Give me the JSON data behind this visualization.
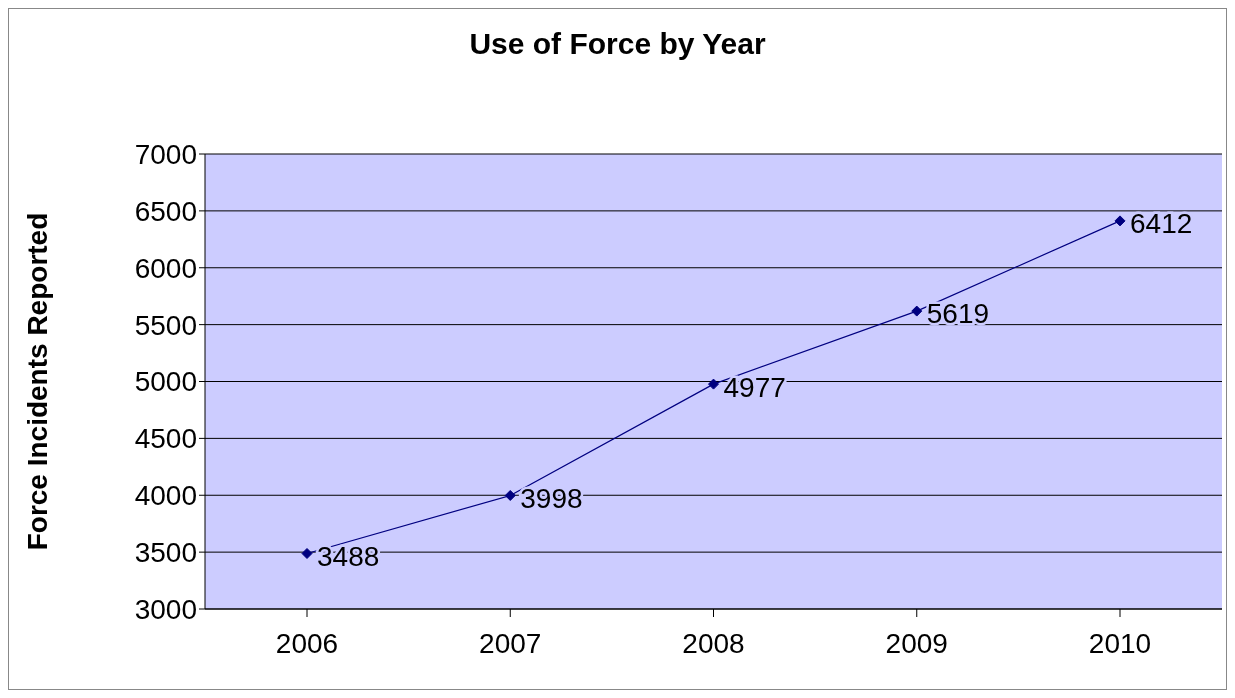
{
  "chart_data": {
    "type": "line",
    "title": "Use of Force by Year",
    "ylabel": "Force Incidents Reported",
    "categories": [
      "2006",
      "2007",
      "2008",
      "2009",
      "2010"
    ],
    "series": [
      {
        "color": "#000080",
        "values": [
          3488,
          3998,
          4977,
          5619,
          6412
        ]
      }
    ],
    "ylim": [
      3000,
      7000
    ],
    "yticks": [
      3000,
      3500,
      4000,
      4500,
      5000,
      5500,
      6000,
      6500,
      7000
    ],
    "grid": "y",
    "marker": "diamond",
    "data_labels": true,
    "legend": false
  }
}
